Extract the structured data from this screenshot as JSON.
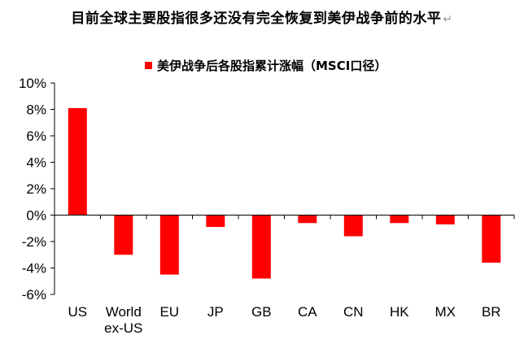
{
  "title": "目前全球主要股指很多还没有完全恢复到美伊战争前的水平",
  "title_mark": "↵",
  "chart_data": {
    "type": "bar",
    "categories": [
      "US",
      "World ex-US",
      "EU",
      "JP",
      "GB",
      "CA",
      "CN",
      "HK",
      "MX",
      "BR"
    ],
    "category_lines": [
      [
        "US"
      ],
      [
        "World",
        "ex-US"
      ],
      [
        "EU"
      ],
      [
        "JP"
      ],
      [
        "GB"
      ],
      [
        "CA"
      ],
      [
        "CN"
      ],
      [
        "HK"
      ],
      [
        "MX"
      ],
      [
        "BR"
      ]
    ],
    "series": [
      {
        "name": "美伊战争后各股指累计涨幅（MSCI口径）",
        "values": [
          8.1,
          -3.0,
          -4.5,
          -0.9,
          -4.8,
          -0.6,
          -1.6,
          -0.6,
          -0.7,
          -3.6
        ]
      }
    ],
    "ylim": [
      -6,
      10
    ],
    "yticks": [
      10,
      8,
      6,
      4,
      2,
      0,
      -2,
      -4,
      -6
    ],
    "ytick_labels": [
      "10%",
      "8%",
      "6%",
      "4%",
      "2%",
      "0%",
      "-2%",
      "-4%",
      "-6%"
    ],
    "legend_position": "top-center",
    "grid": false,
    "bar_color": "#ff0000"
  }
}
